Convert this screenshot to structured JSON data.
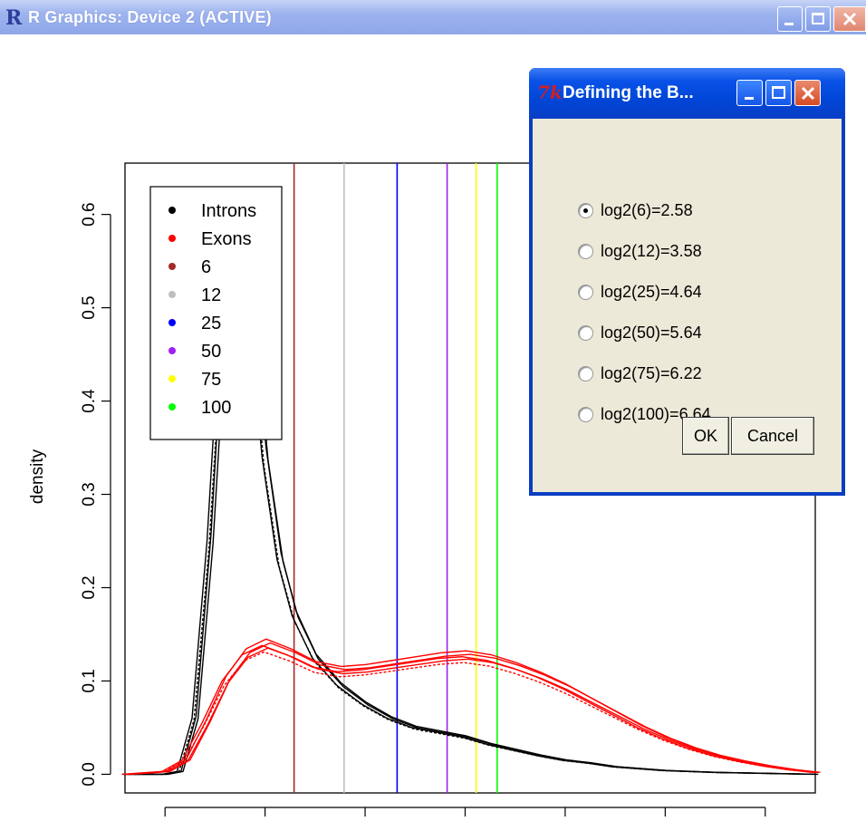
{
  "window": {
    "title": "R Graphics: Device 2 (ACTIVE)",
    "icon": "r-logo-icon"
  },
  "dialog": {
    "title": "Defining the B...",
    "icon": "tk-feather-icon",
    "options": [
      {
        "label": "log2(6)=2.58",
        "selected": true
      },
      {
        "label": "log2(12)=3.58",
        "selected": false
      },
      {
        "label": "log2(25)=4.64",
        "selected": false
      },
      {
        "label": "log2(50)=5.64",
        "selected": false
      },
      {
        "label": "log2(75)=6.22",
        "selected": false
      },
      {
        "label": "log2(100)=6.64",
        "selected": false
      }
    ],
    "ok_label": "OK",
    "cancel_label": "Cancel"
  },
  "chart_data": {
    "type": "line",
    "ylabel": "density",
    "xlabel": "",
    "xlim": [
      -0.8,
      13
    ],
    "ylim": [
      -0.02,
      0.655
    ],
    "x_ticks": [
      0,
      2,
      4,
      6,
      8,
      10,
      12
    ],
    "y_ticks": [
      0.0,
      0.1,
      0.2,
      0.3,
      0.4,
      0.5,
      0.6
    ],
    "y_tick_labels": [
      "0.0",
      "0.1",
      "0.2",
      "0.3",
      "0.4",
      "0.5",
      "0.6"
    ],
    "legend": {
      "position": "top-left",
      "entries": [
        {
          "label": "Introns",
          "color": "#000000"
        },
        {
          "label": "Exons",
          "color": "#ff0000"
        },
        {
          "label": "6",
          "color": "#a52a2a"
        },
        {
          "label": "12",
          "color": "#bebebe"
        },
        {
          "label": "25",
          "color": "#0000ff"
        },
        {
          "label": "50",
          "color": "#a020f0"
        },
        {
          "label": "75",
          "color": "#ffff00"
        },
        {
          "label": "100",
          "color": "#00ff00"
        }
      ]
    },
    "vlines": [
      {
        "x": 2.58,
        "color": "#a52a2a"
      },
      {
        "x": 3.58,
        "color": "#bebebe"
      },
      {
        "x": 4.64,
        "color": "#0000ff"
      },
      {
        "x": 5.64,
        "color": "#a020f0"
      },
      {
        "x": 6.22,
        "color": "#ffff00"
      },
      {
        "x": 6.64,
        "color": "#00ff00"
      }
    ],
    "series": [
      {
        "color": "#000000",
        "x": [
          -0.8,
          0.0,
          0.3,
          0.6,
          0.9,
          1.1,
          1.3,
          1.45,
          1.6,
          1.8,
          2.0,
          2.3,
          2.6,
          3.0,
          3.5,
          4.0,
          4.5,
          5.0,
          5.5,
          6.0,
          6.5,
          7.0,
          7.5,
          8.0,
          8.5,
          9.0,
          10.0,
          11.0,
          12.0,
          13.0
        ],
        "y": [
          0.0,
          0.0,
          0.003,
          0.06,
          0.25,
          0.43,
          0.56,
          0.6,
          0.57,
          0.46,
          0.34,
          0.23,
          0.17,
          0.125,
          0.095,
          0.075,
          0.06,
          0.05,
          0.045,
          0.04,
          0.032,
          0.026,
          0.02,
          0.015,
          0.012,
          0.008,
          0.004,
          0.002,
          0.001,
          0.0
        ]
      },
      {
        "color": "#ff0000",
        "x": [
          -0.8,
          0.0,
          0.4,
          0.8,
          1.2,
          1.6,
          2.0,
          2.5,
          3.0,
          3.5,
          4.0,
          4.5,
          5.0,
          5.5,
          6.0,
          6.5,
          7.0,
          7.5,
          8.0,
          8.5,
          9.0,
          9.5,
          10.0,
          10.5,
          11.0,
          11.5,
          12.0,
          12.5,
          13.0
        ],
        "y": [
          0.0,
          0.003,
          0.015,
          0.055,
          0.1,
          0.128,
          0.138,
          0.128,
          0.115,
          0.11,
          0.112,
          0.116,
          0.12,
          0.124,
          0.126,
          0.122,
          0.114,
          0.104,
          0.092,
          0.078,
          0.064,
          0.05,
          0.038,
          0.028,
          0.02,
          0.014,
          0.009,
          0.005,
          0.002
        ]
      }
    ]
  }
}
